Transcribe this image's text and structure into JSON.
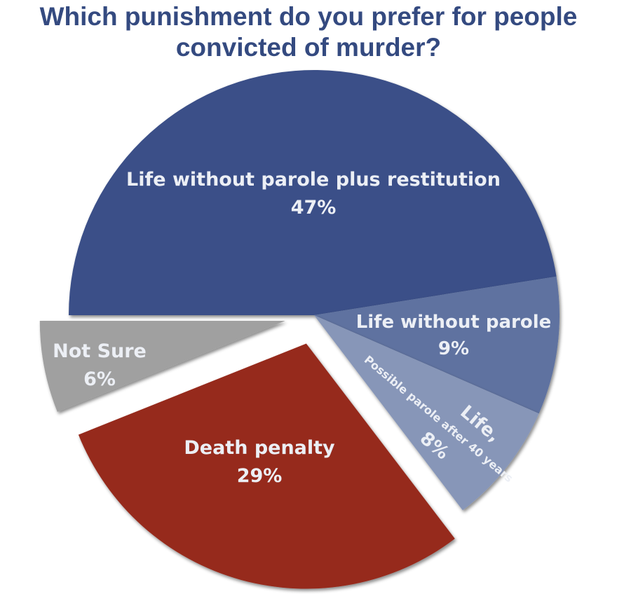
{
  "chart_data": {
    "type": "pie",
    "title": "Which punishment do you prefer for people convicted of murder?",
    "slices": [
      {
        "label": "Life without parole plus restitution",
        "value": 47,
        "value_label": "47%",
        "color": "#3a5088",
        "exploded": false
      },
      {
        "label": "Life without parole",
        "value": 9,
        "value_label": "9%",
        "color": "#5f72a0",
        "exploded": false
      },
      {
        "label": "Life,",
        "sublabel": "Possible parole after 40 years",
        "value": 8,
        "value_label": "8%",
        "color": "#8796b8",
        "exploded": false
      },
      {
        "label": "Death penalty",
        "value": 29,
        "value_label": "29%",
        "color": "#962a1b",
        "exploded": true
      },
      {
        "label": "Not Sure",
        "value": 6,
        "value_label": "6%",
        "color": "#a0a0a0",
        "exploded": true
      }
    ]
  }
}
